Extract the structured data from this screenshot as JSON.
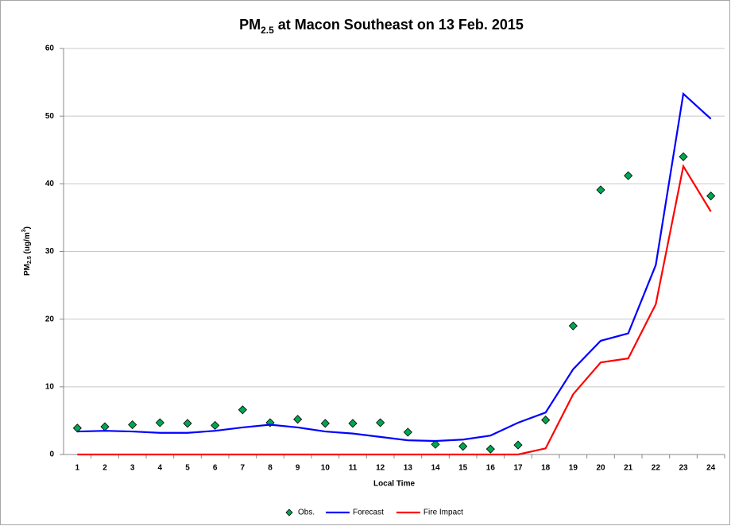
{
  "chart_data": {
    "type": "line",
    "title": [
      "PM",
      "2.5",
      " at Macon Southeast on 13 Feb. 2015"
    ],
    "y_label": [
      "PM",
      "2.5",
      " (ug/m",
      "3",
      ")"
    ],
    "x_label": "Local Time",
    "categories": [
      1,
      2,
      3,
      4,
      5,
      6,
      7,
      8,
      9,
      10,
      11,
      12,
      13,
      14,
      15,
      16,
      17,
      18,
      19,
      20,
      21,
      22,
      23,
      24
    ],
    "ylim": [
      0,
      60
    ],
    "yticks": [
      0,
      10,
      20,
      30,
      40,
      50,
      60
    ],
    "grid": true,
    "legend": "bottom",
    "series": [
      {
        "name": "Obs.",
        "color": "#00a651",
        "style": "markers",
        "values": [
          3.9,
          4.1,
          4.4,
          4.7,
          4.6,
          4.3,
          6.6,
          4.7,
          5.2,
          4.6,
          4.6,
          4.7,
          3.3,
          1.5,
          1.2,
          0.8,
          1.4,
          5.1,
          19.0,
          39.1,
          41.2,
          null,
          44.0,
          38.2
        ]
      },
      {
        "name": "Forecast",
        "color": "#0000ff",
        "style": "line",
        "values": [
          3.4,
          3.5,
          3.4,
          3.2,
          3.2,
          3.5,
          4.0,
          4.4,
          4.0,
          3.4,
          3.1,
          2.6,
          2.1,
          2.0,
          2.2,
          2.8,
          4.7,
          6.2,
          12.6,
          16.8,
          17.9,
          28.0,
          53.3,
          49.6
        ]
      },
      {
        "name": "Fire Impact",
        "color": "#ff0000",
        "style": "line",
        "values": [
          0,
          0,
          0,
          0,
          0,
          0,
          0,
          0,
          0,
          0,
          0,
          0,
          0,
          0,
          0,
          0,
          0,
          0.9,
          8.9,
          13.6,
          14.2,
          22.2,
          42.6,
          35.9
        ]
      }
    ]
  }
}
